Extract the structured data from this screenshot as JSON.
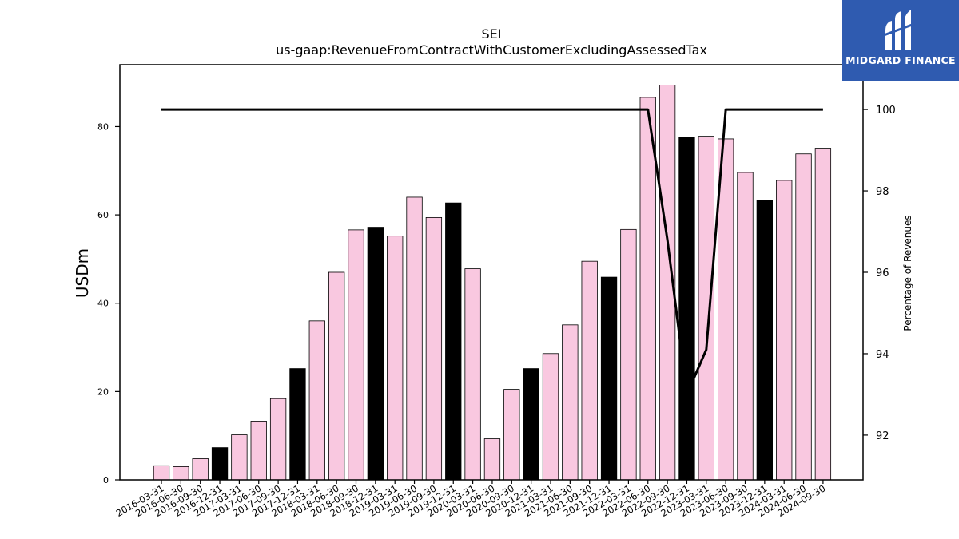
{
  "logo": {
    "text": "MIDGARD FINANCE"
  },
  "chart_data": {
    "type": "bar",
    "title": "SEI",
    "subtitle": "us-gaap:RevenueFromContractWithCustomerExcludingAssessedTax",
    "ylabel": "USDm",
    "y2label": "Percentage of Revenues",
    "ylim": [
      0,
      94
    ],
    "y2lim": [
      90.9,
      101.1
    ],
    "yticks": [
      0,
      20,
      40,
      60,
      80
    ],
    "y2ticks": [
      92,
      94,
      96,
      98,
      100
    ],
    "colors": {
      "bar": "#f9c8e0",
      "q4_bar": "#000000",
      "line": "#000000"
    },
    "categories": [
      "2016-03-31",
      "2016-06-30",
      "2016-09-30",
      "2016-12-31",
      "2017-03-31",
      "2017-06-30",
      "2017-09-30",
      "2017-12-31",
      "2018-03-31",
      "2018-06-30",
      "2018-09-30",
      "2018-12-31",
      "2019-03-31",
      "2019-06-30",
      "2019-09-30",
      "2019-12-31",
      "2020-03-31",
      "2020-06-30",
      "2020-09-30",
      "2020-12-31",
      "2021-03-31",
      "2021-06-30",
      "2021-09-30",
      "2021-12-31",
      "2022-03-31",
      "2022-06-30",
      "2022-09-30",
      "2022-12-31",
      "2023-03-31",
      "2023-06-30",
      "2023-09-30",
      "2023-12-31",
      "2024-03-31",
      "2024-06-30",
      "2024-09-30"
    ],
    "series": [
      {
        "type": "bar",
        "values": [
          3.2,
          3.0,
          4.8,
          7.3,
          10.2,
          13.3,
          18.4,
          25.2,
          36.0,
          47.0,
          56.6,
          57.2,
          55.2,
          64.0,
          59.4,
          62.7,
          47.8,
          9.3,
          20.5,
          25.2,
          28.6,
          35.1,
          49.5,
          45.9,
          56.7,
          86.6,
          89.4,
          77.6,
          77.8,
          77.2,
          69.6,
          63.3,
          67.8,
          73.8,
          75.1
        ]
      },
      {
        "type": "line",
        "axis": "right",
        "values": [
          100,
          100,
          100,
          100,
          100,
          100,
          100,
          100,
          100,
          100,
          100,
          100,
          100,
          100,
          100,
          100,
          100,
          100,
          100,
          100,
          100,
          100,
          100,
          100,
          100,
          100,
          96.8,
          93.0,
          94.1,
          100,
          100,
          100,
          100,
          100,
          100
        ]
      }
    ]
  }
}
